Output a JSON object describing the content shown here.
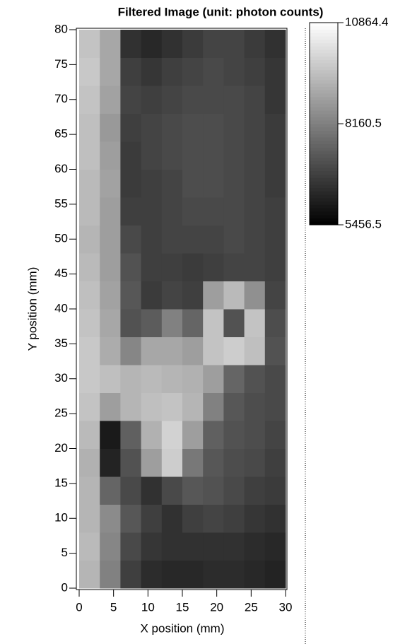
{
  "chart_data": {
    "type": "heatmap",
    "title": "Filtered Image (unit: photon counts)",
    "x_label": "X position (mm)",
    "y_label": "Y position (mm)",
    "x": [
      1.5,
      4.5,
      7.5,
      10.5,
      13.5,
      16.5,
      19.5,
      22.5,
      25.5,
      28.5
    ],
    "y": [
      2,
      6,
      10,
      14,
      18,
      22,
      26,
      30,
      34,
      38,
      42,
      46,
      50,
      54,
      58,
      62,
      66,
      70,
      74,
      78
    ],
    "z": [
      [
        9300,
        8200,
        6800,
        6400,
        6300,
        6300,
        6400,
        6400,
        6300,
        6200
      ],
      [
        9400,
        8300,
        7000,
        6600,
        6500,
        6500,
        6500,
        6500,
        6400,
        6300
      ],
      [
        9300,
        8400,
        7300,
        6800,
        6500,
        6800,
        6900,
        6800,
        6600,
        6500
      ],
      [
        9300,
        7600,
        7000,
        6500,
        7000,
        7300,
        7200,
        7000,
        6800,
        6700
      ],
      [
        9200,
        6200,
        7200,
        8800,
        9800,
        8000,
        7300,
        7100,
        7000,
        6800
      ],
      [
        9400,
        6000,
        7500,
        9200,
        9900,
        8800,
        7500,
        7200,
        7100,
        6900
      ],
      [
        9600,
        8800,
        9300,
        9500,
        9600,
        9300,
        8200,
        7300,
        7100,
        7000
      ],
      [
        9700,
        9500,
        9300,
        9400,
        9300,
        9200,
        8800,
        7600,
        7200,
        7000
      ],
      [
        9700,
        9100,
        8300,
        9000,
        9000,
        8800,
        9600,
        9800,
        9500,
        7200
      ],
      [
        9600,
        9000,
        7200,
        7400,
        8200,
        7600,
        9600,
        7200,
        9600,
        7100
      ],
      [
        9500,
        8900,
        7300,
        6700,
        6900,
        6800,
        8800,
        9400,
        8500,
        6900
      ],
      [
        9400,
        8800,
        7200,
        6800,
        6800,
        6700,
        6800,
        6900,
        6900,
        6800
      ],
      [
        9300,
        8800,
        7000,
        6800,
        6900,
        6900,
        6900,
        7000,
        6900,
        6800
      ],
      [
        9400,
        8800,
        6800,
        6800,
        6900,
        7000,
        7000,
        7000,
        6900,
        6800
      ],
      [
        9400,
        8900,
        6700,
        6800,
        6900,
        7100,
        7100,
        7000,
        6900,
        6700
      ],
      [
        9500,
        8800,
        6700,
        6900,
        7000,
        7100,
        7100,
        7000,
        6900,
        6700
      ],
      [
        9500,
        8700,
        6800,
        6900,
        7000,
        7100,
        7100,
        7000,
        6900,
        6700
      ],
      [
        9600,
        8900,
        6900,
        6800,
        6900,
        7000,
        7000,
        7000,
        6900,
        6600
      ],
      [
        9700,
        9000,
        6800,
        6600,
        6800,
        6900,
        7000,
        6900,
        6800,
        6600
      ],
      [
        9600,
        9000,
        6500,
        6300,
        6500,
        6700,
        6900,
        6900,
        6700,
        6500
      ]
    ],
    "xlim": [
      0,
      30
    ],
    "ylim": [
      0,
      80
    ],
    "xticks": [
      0,
      5,
      10,
      15,
      20,
      25,
      30
    ],
    "yticks": [
      0,
      5,
      10,
      15,
      20,
      25,
      30,
      35,
      40,
      45,
      50,
      55,
      60,
      65,
      70,
      75,
      80
    ],
    "zlim": [
      5456.5,
      10864.4
    ],
    "colorbar_ticks": [
      5456.5,
      8160.5,
      10864.4
    ]
  }
}
